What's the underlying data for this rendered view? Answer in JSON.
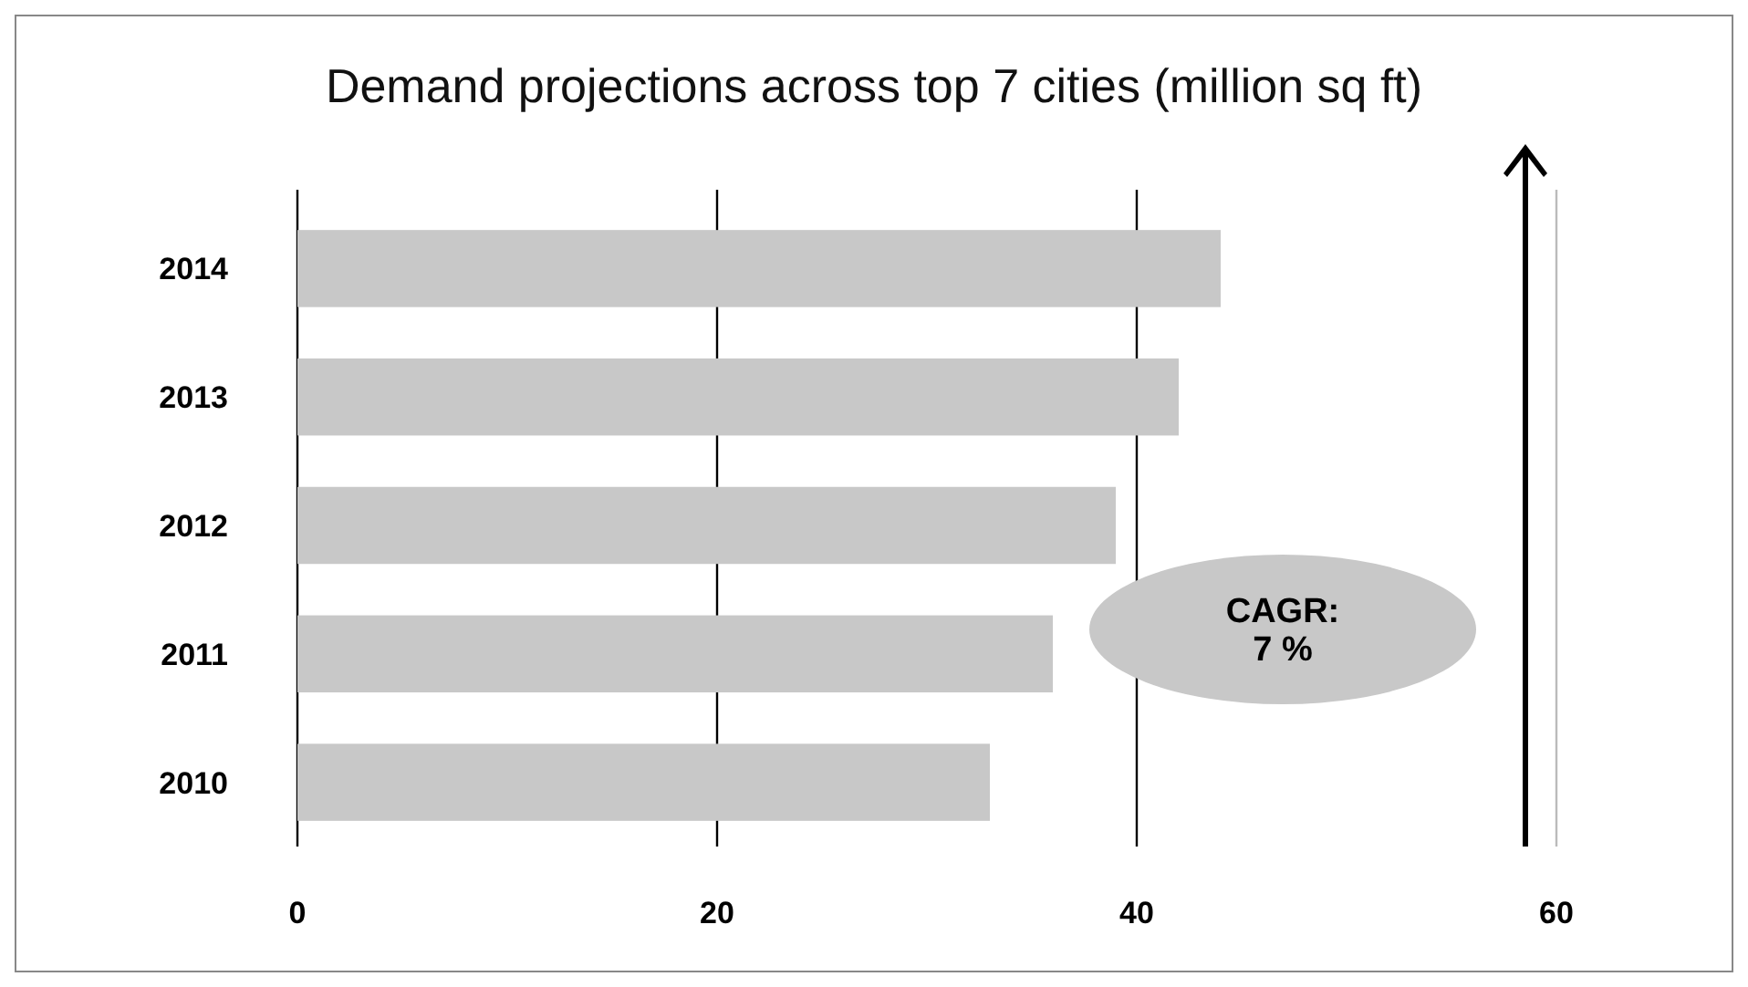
{
  "chart_data": {
    "type": "bar",
    "orientation": "horizontal",
    "title": "Demand projections across top 7 cities (million sq ft)",
    "categories": [
      "2014",
      "2013",
      "2012",
      "2011",
      "2010"
    ],
    "values": [
      44,
      42,
      39,
      36,
      33
    ],
    "color": "#c8c8c8",
    "xlim": [
      0,
      60
    ],
    "xticks": [
      0,
      20,
      40,
      60
    ],
    "grid": "x",
    "annotations": [
      "CAGR:\n7 %"
    ]
  }
}
